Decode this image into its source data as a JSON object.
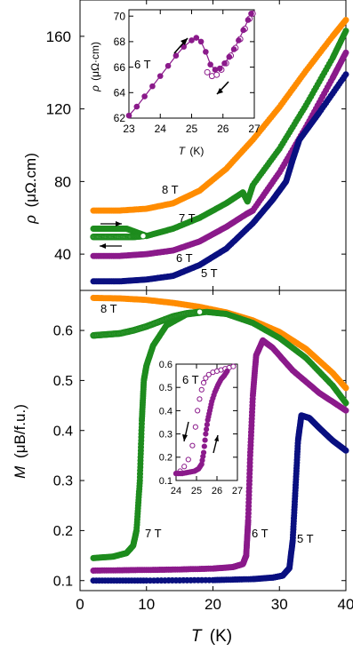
{
  "colors": {
    "8T": "#ff8c00",
    "7T": "#1e8c1e",
    "6T": "#8b1a8b",
    "5T": "#0a1080",
    "axis": "#000000"
  },
  "chart_data": [
    {
      "panel": "top",
      "type": "line",
      "ylabel_main": "ρ",
      "ylabel_unit": "(μΩ.cm)",
      "xlim": [
        0,
        40
      ],
      "ylim": [
        20,
        180
      ],
      "yticks": [
        40,
        80,
        120,
        160
      ],
      "xticks": [
        0,
        10,
        20,
        30,
        40
      ],
      "grid": false,
      "series": [
        {
          "name": "8 T",
          "color_key": "8T",
          "x": [
            2,
            6,
            10,
            14,
            18,
            22,
            26,
            30,
            34,
            38,
            40
          ],
          "y": [
            64,
            64,
            65,
            68,
            75,
            87,
            103,
            121,
            141,
            160,
            169
          ]
        },
        {
          "name": "7 T",
          "color_key": "7T",
          "x": [
            2,
            5,
            7,
            8.5,
            10,
            14,
            18,
            22,
            24.5,
            25.2,
            26,
            30,
            34,
            38,
            40
          ],
          "y": [
            54,
            54,
            54,
            52,
            50,
            54,
            60,
            68,
            74,
            69,
            78,
            98,
            122,
            148,
            163
          ]
        },
        {
          "name": "7 T cooling",
          "color_key": "7T",
          "open": true,
          "x": [
            2,
            4,
            6,
            8,
            9.5
          ],
          "y": [
            49.5,
            49.5,
            49.5,
            49.5,
            50
          ]
        },
        {
          "name": "6 T",
          "color_key": "6T",
          "x": [
            2,
            6,
            10,
            14,
            18,
            22,
            25,
            26,
            30,
            34,
            38,
            40
          ],
          "y": [
            39,
            39,
            40,
            42,
            47,
            55,
            62,
            64,
            85,
            110,
            137,
            151
          ]
        },
        {
          "name": "5 T",
          "color_key": "5T",
          "x": [
            2,
            6,
            10,
            14,
            18,
            22,
            26,
            29,
            31,
            32,
            33,
            36,
            40
          ],
          "y": [
            25,
            25,
            26,
            28,
            34,
            43,
            57,
            70,
            80,
            92,
            103,
            118,
            139
          ]
        }
      ],
      "labels": [
        "8 T",
        "7 T",
        "6 T",
        "5 T"
      ],
      "inset": {
        "ylabel_main": "ρ",
        "ylabel_unit": "(μΩ·cm)",
        "xlabel_main": "T",
        "xlabel_unit": "(K)",
        "annotation": "6 T",
        "xlim": [
          23,
          27
        ],
        "ylim": [
          62,
          70.5
        ],
        "xticks": [
          23,
          24,
          25,
          26,
          27
        ],
        "yticks": [
          62,
          64,
          66,
          68,
          70
        ],
        "warming": {
          "x": [
            23.0,
            23.25,
            23.5,
            23.75,
            24.0,
            24.25,
            24.5,
            24.75,
            25.0,
            25.15,
            25.3,
            25.45,
            25.6,
            25.75,
            25.9,
            26.05,
            26.2,
            26.35,
            26.5,
            26.65,
            26.8,
            26.9
          ],
          "y": [
            62.2,
            62.9,
            63.7,
            64.5,
            65.3,
            66.1,
            66.9,
            67.6,
            68.1,
            68.3,
            68.0,
            67.2,
            66.2,
            65.8,
            65.9,
            66.3,
            66.8,
            67.4,
            68.1,
            68.9,
            69.7,
            70.2
          ]
        },
        "cooling": {
          "x": [
            25.5,
            25.65,
            25.8,
            25.95,
            26.1,
            26.25,
            26.4,
            26.55,
            26.7,
            26.85,
            26.95
          ],
          "y": [
            65.6,
            65.3,
            65.4,
            65.8,
            66.3,
            66.9,
            67.5,
            68.2,
            69.0,
            69.8,
            70.2
          ]
        }
      }
    },
    {
      "panel": "bottom",
      "type": "line",
      "xlabel_main": "T",
      "xlabel_unit": "(K)",
      "ylabel_main": "M",
      "ylabel_unit": "(μB/f.u.)",
      "xlim": [
        0,
        40
      ],
      "ylim": [
        0.08,
        0.68
      ],
      "xticks": [
        0,
        10,
        20,
        30,
        40
      ],
      "xticklabels": [
        "0",
        "10",
        "20",
        "30",
        "40"
      ],
      "yticks": [
        0.1,
        0.2,
        0.3,
        0.4,
        0.5,
        0.6
      ],
      "yticklabels": [
        "0.1",
        "0.2",
        "0.3",
        "0.4",
        "0.5",
        "0.6"
      ],
      "grid": false,
      "series": [
        {
          "name": "8 T",
          "color_key": "8T",
          "x": [
            2,
            6,
            10,
            14,
            18,
            22,
            26,
            30,
            34,
            38,
            40
          ],
          "y": [
            0.665,
            0.664,
            0.661,
            0.655,
            0.647,
            0.636,
            0.62,
            0.597,
            0.563,
            0.515,
            0.485
          ]
        },
        {
          "name": "7 T",
          "color_key": "7T",
          "x": [
            2,
            5,
            7,
            8,
            8.5,
            9,
            9.3,
            9.6,
            10,
            11,
            13,
            16,
            19,
            22,
            26,
            30,
            34,
            38,
            40
          ],
          "y": [
            0.145,
            0.148,
            0.155,
            0.17,
            0.2,
            0.3,
            0.42,
            0.5,
            0.53,
            0.57,
            0.61,
            0.632,
            0.637,
            0.633,
            0.615,
            0.585,
            0.545,
            0.49,
            0.455
          ]
        },
        {
          "name": "7 T cooling",
          "color_key": "7T",
          "open": true,
          "x": [
            2,
            4,
            6,
            8,
            10,
            12,
            14,
            16,
            18
          ],
          "y": [
            0.59,
            0.592,
            0.594,
            0.6,
            0.608,
            0.618,
            0.628,
            0.634,
            0.637
          ]
        },
        {
          "name": "6 T",
          "color_key": "6T",
          "x": [
            2,
            8,
            14,
            20,
            23,
            24.5,
            25,
            25.3,
            25.6,
            26,
            26.5,
            27.5,
            29,
            32,
            36,
            40
          ],
          "y": [
            0.12,
            0.121,
            0.122,
            0.124,
            0.127,
            0.133,
            0.15,
            0.22,
            0.35,
            0.47,
            0.55,
            0.58,
            0.565,
            0.52,
            0.475,
            0.44
          ]
        },
        {
          "name": "5 T",
          "color_key": "5T",
          "x": [
            2,
            10,
            20,
            26,
            29,
            30.5,
            31.5,
            32,
            32.4,
            32.8,
            33.3,
            34.5,
            36,
            38,
            40
          ],
          "y": [
            0.1,
            0.1,
            0.101,
            0.103,
            0.106,
            0.11,
            0.125,
            0.18,
            0.28,
            0.38,
            0.43,
            0.425,
            0.405,
            0.38,
            0.36
          ]
        }
      ],
      "labels": [
        "8 T",
        "7 T",
        "6 T",
        "5 T"
      ],
      "inset": {
        "annotation": "6 T",
        "xlim": [
          24,
          27
        ],
        "ylim": [
          0.1,
          0.6
        ],
        "xticks": [
          24,
          25,
          26,
          27
        ],
        "yticks": [
          0.1,
          0.2,
          0.3,
          0.4,
          0.5,
          0.6
        ],
        "yticklabels": [
          "0.1",
          "0.2",
          "0.3",
          "0.4",
          "0.5",
          "0.6"
        ],
        "warming": {
          "x": [
            24.0,
            24.3,
            24.6,
            24.9,
            25.1,
            25.25,
            25.35,
            25.45,
            25.55,
            25.65,
            25.75,
            25.9,
            26.05,
            26.2,
            26.35,
            26.5
          ],
          "y": [
            0.13,
            0.13,
            0.135,
            0.14,
            0.15,
            0.17,
            0.22,
            0.3,
            0.36,
            0.4,
            0.44,
            0.48,
            0.51,
            0.535,
            0.55,
            0.57
          ]
        },
        "cooling": {
          "x": [
            24.0,
            24.2,
            24.4,
            24.6,
            24.8,
            24.95,
            25.05,
            25.15,
            25.25,
            25.35,
            25.45,
            25.6,
            25.8,
            26.0,
            26.2,
            26.4,
            26.6,
            26.8
          ],
          "y": [
            0.13,
            0.14,
            0.16,
            0.19,
            0.25,
            0.33,
            0.4,
            0.45,
            0.49,
            0.52,
            0.54,
            0.555,
            0.565,
            0.57,
            0.575,
            0.58,
            0.585,
            0.59
          ]
        }
      }
    }
  ]
}
